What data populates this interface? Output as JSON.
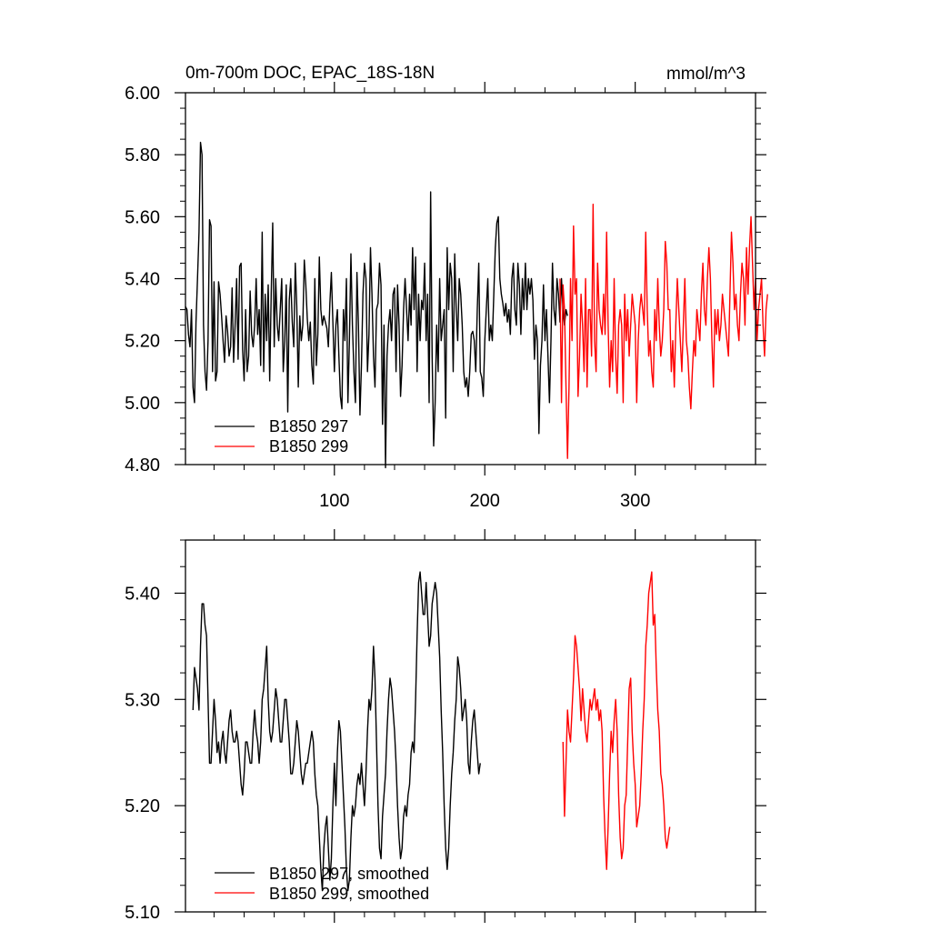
{
  "chart_data": [
    {
      "type": "line",
      "title": "0m-700m DOC, EPAC_18S-18N",
      "units": "mmol/m^3",
      "xlim": [
        1,
        380
      ],
      "ylim": [
        4.8,
        6.0
      ],
      "x_ticks": [
        100,
        200,
        300
      ],
      "x_tick_labels": [
        "100",
        "200",
        "300"
      ],
      "y_ticks": [
        4.8,
        5.0,
        5.2,
        5.4,
        5.6,
        5.8,
        6.0
      ],
      "y_tick_labels": [
        "4.80",
        "5.00",
        "5.20",
        "5.40",
        "5.60",
        "5.80",
        "6.00"
      ],
      "legend": [
        "B1850 297",
        "B1850 299"
      ],
      "series": [
        {
          "name": "B1850 297",
          "color": "#000000",
          "x_start": 1,
          "values": [
            5.31,
            5.3,
            5.22,
            5.18,
            5.3,
            5.05,
            5.0,
            5.26,
            5.4,
            5.55,
            5.84,
            5.8,
            5.25,
            5.1,
            5.04,
            5.2,
            5.59,
            5.57,
            5.1,
            5.39,
            5.07,
            5.1,
            5.39,
            5.35,
            5.28,
            5.2,
            5.13,
            5.28,
            5.23,
            5.15,
            5.18,
            5.37,
            5.13,
            5.25,
            5.4,
            5.14,
            5.44,
            5.45,
            5.17,
            5.07,
            5.3,
            5.1,
            5.15,
            5.36,
            5.22,
            5.18,
            5.25,
            5.4,
            5.22,
            5.3,
            5.12,
            5.55,
            5.1,
            5.35,
            5.2,
            5.38,
            5.07,
            5.35,
            5.58,
            5.18,
            5.4,
            5.25,
            5.2,
            5.3,
            5.4,
            5.1,
            5.2,
            5.38,
            4.97,
            5.33,
            5.4,
            5.26,
            5.18,
            5.45,
            5.31,
            5.05,
            5.28,
            5.2,
            5.25,
            5.46,
            5.38,
            5.27,
            5.2,
            5.26,
            5.12,
            5.06,
            5.4,
            5.12,
            5.22,
            5.47,
            5.3,
            5.25,
            5.28,
            5.26,
            5.24,
            5.18,
            5.32,
            5.42,
            5.26,
            5.1,
            5.25,
            5.3,
            5.15,
            5.02,
            4.98,
            5.3,
            5.2,
            5.4,
            5.0,
            5.2,
            5.48,
            5.25,
            5.1,
            5.0,
            5.42,
            5.25,
            4.96,
            5.12,
            5.35,
            5.45,
            5.4,
            5.1,
            5.22,
            5.5,
            5.35,
            5.15,
            5.05,
            5.3,
            5.32,
            5.45,
            5.38,
            4.93,
            5.25,
            4.79,
            5.15,
            5.25,
            5.3,
            5.2,
            5.35,
            5.37,
            5.1,
            5.38,
            5.25,
            5.02,
            5.12,
            5.3,
            5.4,
            5.3,
            5.2,
            5.35,
            5.25,
            5.5,
            5.3,
            5.47,
            5.1,
            5.35,
            5.2,
            5.33,
            5.3,
            5.45,
            5.2,
            5.35,
            5.0,
            5.68,
            5.15,
            4.86,
            5.0,
            5.25,
            5.1,
            5.4,
            5.2,
            5.25,
            5.3,
            4.95,
            5.5,
            5.3,
            5.45,
            5.4,
            5.1,
            5.48,
            5.3,
            5.2,
            5.4,
            5.35,
            5.25,
            5.1,
            5.05,
            5.08,
            5.02,
            5.1,
            5.22,
            5.23,
            5.2,
            5.1,
            5.3,
            5.45,
            5.1,
            5.08,
            5.02,
            5.2,
            5.3,
            5.4,
            5.2,
            5.25,
            5.2,
            5.35,
            5.5,
            5.58,
            5.6,
            5.4,
            5.35,
            5.32,
            5.28,
            5.32,
            5.26,
            5.3,
            5.22,
            5.4,
            5.45,
            5.3,
            5.25,
            5.45,
            5.38,
            5.22,
            5.4,
            5.3,
            5.45,
            5.3,
            5.4,
            5.35,
            5.4,
            5.33,
            5.14,
            5.25,
            5.2,
            4.9,
            5.12,
            5.2,
            5.38,
            5.2,
            5.3,
            5.15,
            5.0,
            5.2,
            5.45,
            5.3,
            5.25,
            5.4,
            5.35,
            5.26,
            5.4,
            5.3,
            5.25,
            5.3,
            5.28
          ]
        },
        {
          "name": "B1850 299",
          "color": "#ff0000",
          "x_start": 250,
          "values": [
            5.4,
            5.0,
            5.38,
            5.3,
            5.05,
            4.82,
            5.05,
            5.4,
            5.2,
            5.57,
            5.35,
            5.4,
            5.02,
            5.15,
            5.35,
            5.25,
            5.1,
            5.4,
            5.05,
            5.3,
            5.3,
            5.15,
            5.64,
            5.2,
            5.1,
            5.45,
            5.3,
            5.25,
            5.22,
            5.35,
            5.22,
            5.55,
            5.25,
            5.05,
            5.2,
            5.1,
            5.4,
            5.15,
            5.03,
            5.25,
            5.3,
            5.25,
            5.0,
            5.35,
            5.2,
            5.3,
            5.15,
            5.25,
            5.35,
            5.3,
            5.25,
            5.0,
            5.2,
            5.3,
            5.35,
            5.3,
            5.25,
            5.55,
            5.3,
            5.15,
            5.2,
            5.1,
            5.05,
            5.3,
            5.2,
            5.4,
            5.25,
            5.15,
            5.2,
            5.3,
            5.52,
            5.45,
            5.3,
            5.3,
            5.1,
            5.2,
            5.05,
            5.25,
            5.4,
            5.3,
            5.2,
            5.1,
            5.25,
            5.4,
            5.2,
            5.15,
            5.05,
            4.98,
            5.1,
            5.2,
            5.15,
            5.3,
            5.25,
            5.2,
            5.35,
            5.45,
            5.3,
            5.25,
            5.4,
            5.5,
            5.4,
            5.2,
            5.05,
            5.3,
            5.22,
            5.3,
            5.2,
            5.25,
            5.35,
            5.3,
            5.25,
            5.2,
            5.15,
            5.35,
            5.55,
            5.45,
            5.3,
            5.35,
            5.25,
            5.2,
            5.35,
            5.45,
            5.4,
            5.25,
            5.5,
            5.35,
            5.5,
            5.6,
            5.45,
            5.3,
            5.4,
            5.2,
            5.3,
            5.35,
            5.4,
            5.25,
            5.15,
            5.3,
            5.35
          ]
        }
      ]
    },
    {
      "type": "line",
      "xlim": [
        1,
        380
      ],
      "ylim": [
        5.1,
        5.45
      ],
      "x_ticks": [
        100,
        200,
        300
      ],
      "y_ticks": [
        5.1,
        5.2,
        5.3,
        5.4
      ],
      "y_tick_labels": [
        "5.10",
        "5.20",
        "5.30",
        "5.40"
      ],
      "legend": [
        "B1850 297, smoothed",
        "B1850 299, smoothed"
      ],
      "series": [
        {
          "name": "B1850 297, smoothed",
          "color": "#000000",
          "x_start": 6,
          "values": [
            5.29,
            5.33,
            5.32,
            5.31,
            5.29,
            5.35,
            5.39,
            5.39,
            5.37,
            5.36,
            5.3,
            5.24,
            5.24,
            5.27,
            5.3,
            5.28,
            5.25,
            5.26,
            5.24,
            5.26,
            5.27,
            5.25,
            5.24,
            5.26,
            5.28,
            5.29,
            5.27,
            5.26,
            5.26,
            5.27,
            5.26,
            5.24,
            5.22,
            5.21,
            5.23,
            5.26,
            5.26,
            5.25,
            5.24,
            5.24,
            5.27,
            5.29,
            5.27,
            5.26,
            5.24,
            5.26,
            5.3,
            5.31,
            5.33,
            5.35,
            5.3,
            5.27,
            5.26,
            5.27,
            5.29,
            5.31,
            5.3,
            5.28,
            5.26,
            5.26,
            5.28,
            5.3,
            5.3,
            5.28,
            5.26,
            5.23,
            5.23,
            5.24,
            5.26,
            5.28,
            5.27,
            5.25,
            5.23,
            5.22,
            5.23,
            5.24,
            5.24,
            5.25,
            5.26,
            5.27,
            5.26,
            5.23,
            5.21,
            5.2,
            5.17,
            5.14,
            5.12,
            5.16,
            5.18,
            5.19,
            5.16,
            5.13,
            5.15,
            5.2,
            5.24,
            5.2,
            5.25,
            5.28,
            5.27,
            5.24,
            5.21,
            5.18,
            5.14,
            5.12,
            5.13,
            5.17,
            5.2,
            5.19,
            5.2,
            5.22,
            5.23,
            5.22,
            5.24,
            5.22,
            5.2,
            5.23,
            5.27,
            5.3,
            5.29,
            5.31,
            5.35,
            5.32,
            5.26,
            5.2,
            5.16,
            5.15,
            5.19,
            5.21,
            5.23,
            5.27,
            5.3,
            5.32,
            5.31,
            5.29,
            5.27,
            5.24,
            5.2,
            5.17,
            5.15,
            5.16,
            5.19,
            5.2,
            5.19,
            5.21,
            5.22,
            5.25,
            5.26,
            5.25,
            5.3,
            5.36,
            5.41,
            5.42,
            5.4,
            5.38,
            5.38,
            5.41,
            5.38,
            5.35,
            5.36,
            5.39,
            5.4,
            5.41,
            5.4,
            5.37,
            5.34,
            5.29,
            5.25,
            5.2,
            5.16,
            5.14,
            5.16,
            5.2,
            5.23,
            5.25,
            5.28,
            5.3,
            5.34,
            5.33,
            5.31,
            5.28,
            5.29,
            5.3,
            5.28,
            5.24,
            5.23,
            5.26,
            5.28,
            5.29,
            5.27,
            5.25,
            5.23,
            5.24
          ]
        },
        {
          "name": "B1850 299, smoothed",
          "color": "#ff0000",
          "x_start": 252,
          "values": [
            5.26,
            5.19,
            5.24,
            5.29,
            5.27,
            5.26,
            5.29,
            5.32,
            5.36,
            5.35,
            5.33,
            5.31,
            5.28,
            5.31,
            5.29,
            5.27,
            5.26,
            5.28,
            5.3,
            5.29,
            5.3,
            5.31,
            5.29,
            5.3,
            5.28,
            5.29,
            5.27,
            5.21,
            5.17,
            5.14,
            5.18,
            5.23,
            5.27,
            5.25,
            5.28,
            5.3,
            5.27,
            5.21,
            5.17,
            5.15,
            5.16,
            5.2,
            5.21,
            5.26,
            5.31,
            5.32,
            5.27,
            5.24,
            5.22,
            5.18,
            5.19,
            5.2,
            5.23,
            5.27,
            5.3,
            5.35,
            5.37,
            5.4,
            5.41,
            5.42,
            5.37,
            5.38,
            5.33,
            5.29,
            5.27,
            5.23,
            5.22,
            5.2,
            5.17,
            5.16,
            5.17,
            5.18
          ]
        }
      ]
    }
  ]
}
